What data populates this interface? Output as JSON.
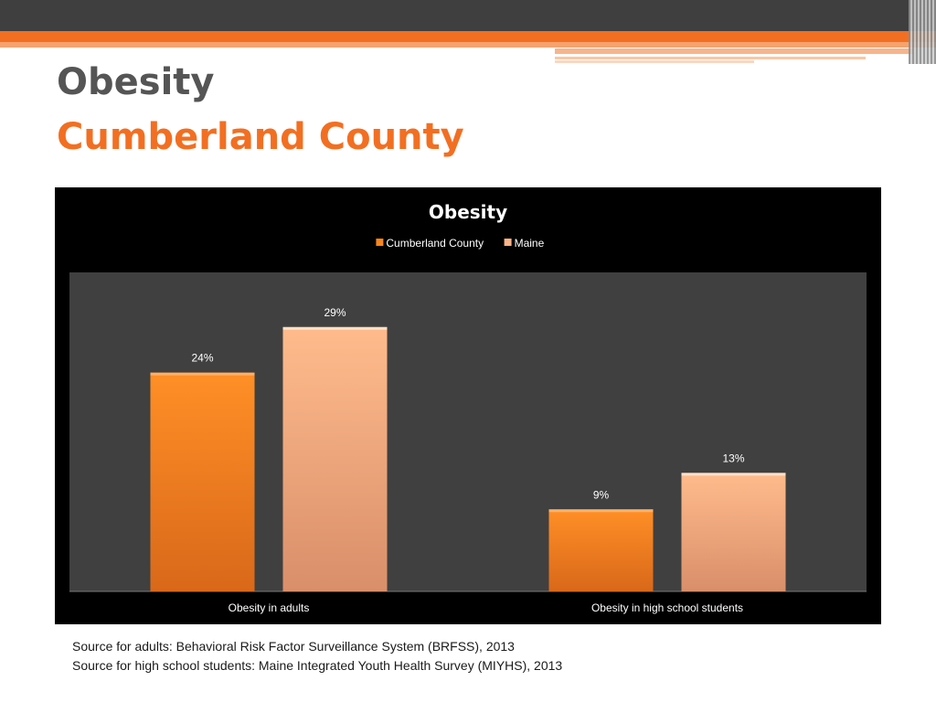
{
  "slide": {
    "title_line_1": "Obesity",
    "title_line_2": "Cumberland County",
    "sources": [
      "Source for adults: Behavioral Risk Factor Surveillance System (BRFSS), 2013",
      "Source for high school students: Maine Integrated Youth Health Survey (MIYHS), 2013"
    ]
  },
  "colors": {
    "accent": "#f26f22",
    "dark": "#3f3f3f",
    "series_cumberland": "#f7861f",
    "series_maine": "#fbb487",
    "plot_bg": "#404040"
  },
  "chart_data": {
    "type": "bar",
    "title": "Obesity",
    "categories": [
      "Obesity in adults",
      "Obesity in high school students"
    ],
    "series": [
      {
        "name": "Cumberland County",
        "values": [
          24,
          9
        ],
        "labels": [
          "24%",
          "9%"
        ]
      },
      {
        "name": "Maine",
        "values": [
          29,
          13
        ],
        "labels": [
          "29%",
          "13%"
        ]
      }
    ],
    "ylim": [
      0,
      35
    ],
    "legend": "top-center",
    "grid": false
  }
}
